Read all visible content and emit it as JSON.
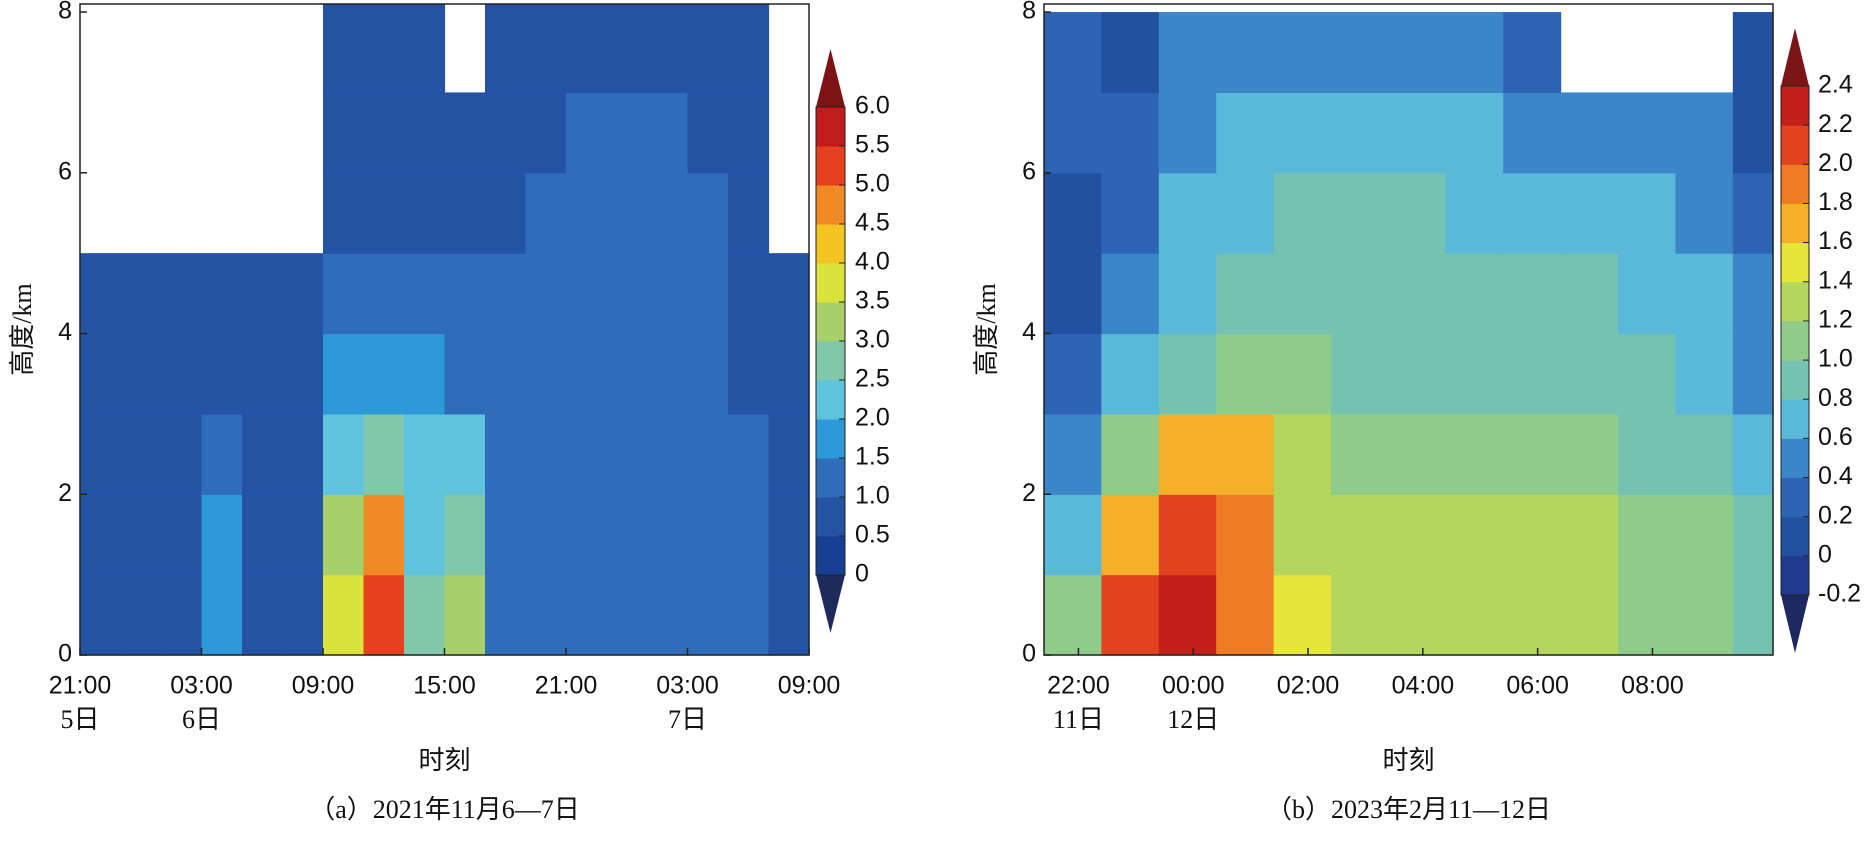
{
  "chart_data": [
    {
      "type": "contour",
      "caption": "（a）2021年11月6—7日",
      "xlabel": "时刻",
      "ylabel": "高度/km",
      "xlim": [
        0,
        36
      ],
      "ylim": [
        0,
        8.1
      ],
      "xticks": [
        {
          "value": 0,
          "label": "21:00"
        },
        {
          "value": 6,
          "label": "03:00"
        },
        {
          "value": 12,
          "label": "09:00"
        },
        {
          "value": 18,
          "label": "15:00"
        },
        {
          "value": 24,
          "label": "21:00"
        },
        {
          "value": 30,
          "label": "03:00"
        },
        {
          "value": 36,
          "label": "09:00"
        }
      ],
      "xday_labels": [
        {
          "value": 0,
          "label": "5日"
        },
        {
          "value": 6,
          "label": "6日"
        },
        {
          "value": 30,
          "label": "7日"
        }
      ],
      "yticks": [
        0,
        2,
        4,
        6,
        8
      ],
      "x_edges": [
        0,
        2,
        4,
        6,
        8,
        10,
        12,
        14,
        16,
        18,
        20,
        22,
        24,
        26,
        28,
        30,
        32,
        34,
        36
      ],
      "y_edges": [
        0,
        1,
        2,
        3,
        4,
        5,
        6,
        7,
        8.1
      ],
      "z": [
        [
          0.7,
          0.6,
          0.8,
          1.8,
          0.6,
          0.6,
          3.5,
          5.2,
          2.6,
          3.0,
          1.0,
          1.1,
          1.1,
          1.1,
          1.1,
          1.1,
          1.0,
          0.6
        ],
        [
          0.6,
          0.6,
          0.8,
          1.6,
          0.6,
          0.6,
          3.0,
          4.5,
          2.4,
          2.6,
          1.0,
          1.1,
          1.1,
          1.1,
          1.1,
          1.1,
          1.0,
          0.6
        ],
        [
          0.6,
          0.6,
          0.7,
          1.0,
          0.6,
          0.6,
          2.2,
          2.6,
          2.1,
          2.1,
          1.0,
          1.1,
          1.1,
          1.1,
          1.1,
          1.1,
          1.0,
          0.6
        ],
        [
          0.5,
          0.6,
          0.7,
          0.8,
          0.6,
          0.6,
          1.5,
          1.7,
          1.6,
          1.4,
          1.0,
          1.1,
          1.1,
          1.1,
          1.1,
          1.1,
          0.9,
          0.6
        ],
        [
          0.6,
          0.5,
          0.6,
          0.7,
          0.6,
          0.6,
          1.2,
          1.2,
          1.4,
          1.0,
          1.0,
          1.0,
          1.1,
          1.1,
          1.1,
          1.0,
          0.9,
          0.6
        ],
        [
          null,
          null,
          null,
          null,
          null,
          null,
          0.8,
          0.8,
          0.9,
          0.8,
          0.9,
          1.0,
          1.0,
          1.1,
          1.0,
          1.0,
          0.8,
          null
        ],
        [
          null,
          null,
          null,
          null,
          null,
          null,
          0.8,
          0.8,
          0.8,
          0.8,
          0.8,
          0.9,
          1.0,
          1.0,
          1.0,
          0.9,
          0.8,
          null
        ],
        [
          null,
          null,
          null,
          null,
          null,
          null,
          0.7,
          0.7,
          0.7,
          null,
          0.8,
          0.9,
          0.9,
          0.9,
          0.9,
          0.9,
          0.8,
          null
        ]
      ],
      "cbar_ticks": [
        0,
        0.5,
        {
          "value": 1,
          "label": "1.0"
        },
        1.5,
        {
          "value": 2,
          "label": "2.0"
        },
        2.5,
        {
          "value": 3,
          "label": "3.0"
        },
        3.5,
        {
          "value": 4,
          "label": "4.0"
        },
        4.5,
        {
          "value": 5,
          "label": "5.0"
        },
        5.5,
        {
          "value": 6,
          "label": "6.0"
        }
      ],
      "colors": [
        "#163f93",
        "#2553a4",
        "#2f6cb9",
        "#2c99d8",
        "#5fc3dd",
        "#7fc8a9",
        "#a7d06b",
        "#d9e33a",
        "#f4c423",
        "#ef8a25",
        "#e6401f",
        "#c21b1b"
      ],
      "under_color": "#1f2a5c",
      "over_color": "#7d1414"
    },
    {
      "type": "contour",
      "caption": "（b）2023年2月11—12日",
      "xlabel": "时刻",
      "ylabel": "高度/km",
      "xlim": [
        -0.6,
        12.1
      ],
      "ylim": [
        0,
        8.1
      ],
      "xticks": [
        {
          "value": 0,
          "label": "22:00"
        },
        {
          "value": 2,
          "label": "00:00"
        },
        {
          "value": 4,
          "label": "02:00"
        },
        {
          "value": 6,
          "label": "04:00"
        },
        {
          "value": 8,
          "label": "06:00"
        },
        {
          "value": 10,
          "label": "08:00"
        }
      ],
      "xday_labels": [
        {
          "value": 0,
          "label": "11日"
        },
        {
          "value": 2,
          "label": "12日"
        }
      ],
      "yticks": [
        0,
        2,
        4,
        6,
        8
      ],
      "x_edges": [
        -0.6,
        0.4,
        1.4,
        2.4,
        3.4,
        4.4,
        5.4,
        6.4,
        7.4,
        8.4,
        9.4,
        10.4,
        11.4,
        12.1
      ],
      "y_edges": [
        0,
        1,
        2,
        3,
        4,
        5,
        6,
        7,
        8
      ],
      "z": [
        [
          1.0,
          2.1,
          2.3,
          1.9,
          1.5,
          1.3,
          1.3,
          1.25,
          1.25,
          1.2,
          1.1,
          1.1,
          0.9
        ],
        [
          0.7,
          1.6,
          2.0,
          1.8,
          1.3,
          1.2,
          1.2,
          1.2,
          1.2,
          1.2,
          1.1,
          1.0,
          0.8
        ],
        [
          0.5,
          1.0,
          1.6,
          1.6,
          1.2,
          1.1,
          1.0,
          1.0,
          1.0,
          1.0,
          0.9,
          0.9,
          0.6
        ],
        [
          0.3,
          0.6,
          0.9,
          1.0,
          1.0,
          0.9,
          0.9,
          0.9,
          0.9,
          0.8,
          0.8,
          0.7,
          0.5
        ],
        [
          0.1,
          0.4,
          0.7,
          0.8,
          0.9,
          0.9,
          0.9,
          0.8,
          0.8,
          0.8,
          0.7,
          0.7,
          0.4
        ],
        [
          0.1,
          0.3,
          0.6,
          0.7,
          0.8,
          0.8,
          0.8,
          0.7,
          0.7,
          0.7,
          0.6,
          0.5,
          0.3
        ],
        [
          0.3,
          0.3,
          0.5,
          0.7,
          0.7,
          0.6,
          0.6,
          0.6,
          0.5,
          0.5,
          0.5,
          0.4,
          0.1
        ],
        [
          0.3,
          0.1,
          0.4,
          0.5,
          0.5,
          0.4,
          0.4,
          0.4,
          0.3,
          null,
          null,
          null,
          0.1
        ]
      ],
      "cbar_ticks": [
        -0.2,
        0,
        0.2,
        0.4,
        0.6,
        0.8,
        {
          "value": 1,
          "label": "1.0"
        },
        1.2,
        1.4,
        1.6,
        1.8,
        {
          "value": 2,
          "label": "2.0"
        },
        2.2,
        2.4
      ],
      "colors": [
        "#1f3a8a",
        "#2350a0",
        "#2e64b4",
        "#3a86c8",
        "#5ab8d8",
        "#74c3b0",
        "#8fcc8a",
        "#b5d65c",
        "#e6e63a",
        "#f5b02a",
        "#ef7a24",
        "#e2421e",
        "#c4201b"
      ],
      "under_color": "#1c2860",
      "over_color": "#7a1616"
    }
  ]
}
